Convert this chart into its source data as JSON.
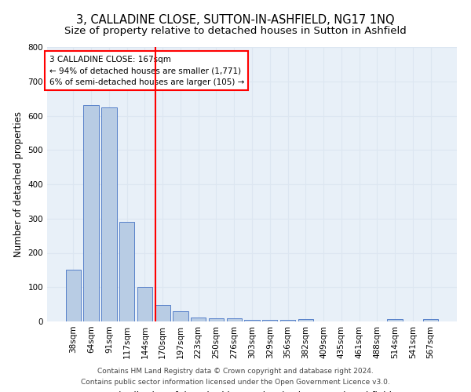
{
  "title": "3, CALLADINE CLOSE, SUTTON-IN-ASHFIELD, NG17 1NQ",
  "subtitle": "Size of property relative to detached houses in Sutton in Ashfield",
  "xlabel": "Distribution of detached houses by size in Sutton in Ashfield",
  "ylabel": "Number of detached properties",
  "footnote1": "Contains HM Land Registry data © Crown copyright and database right 2024.",
  "footnote2": "Contains public sector information licensed under the Open Government Licence v3.0.",
  "annotation_line1": "3 CALLADINE CLOSE: 167sqm",
  "annotation_line2": "← 94% of detached houses are smaller (1,771)",
  "annotation_line3": "6% of semi-detached houses are larger (105) →",
  "bar_color": "#b8cce4",
  "bar_edge_color": "#4472c4",
  "red_line_x": 4.58,
  "categories": [
    "38sqm",
    "64sqm",
    "91sqm",
    "117sqm",
    "144sqm",
    "170sqm",
    "197sqm",
    "223sqm",
    "250sqm",
    "276sqm",
    "303sqm",
    "329sqm",
    "356sqm",
    "382sqm",
    "409sqm",
    "435sqm",
    "461sqm",
    "488sqm",
    "514sqm",
    "541sqm",
    "567sqm"
  ],
  "values": [
    150,
    630,
    625,
    290,
    100,
    47,
    30,
    12,
    10,
    10,
    5,
    5,
    5,
    7,
    0,
    0,
    0,
    0,
    7,
    0,
    7
  ],
  "ylim": [
    0,
    800
  ],
  "yticks": [
    0,
    100,
    200,
    300,
    400,
    500,
    600,
    700,
    800
  ],
  "grid_color": "#dce6f1",
  "bg_color": "#e8f0f8",
  "title_fontsize": 10.5,
  "subtitle_fontsize": 9.5,
  "axis_label_fontsize": 8.5,
  "tick_fontsize": 7.5,
  "annotation_fontsize": 7.5,
  "footnote_fontsize": 6.5
}
